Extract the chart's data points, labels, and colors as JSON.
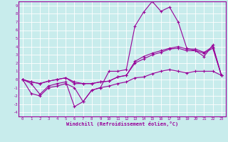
{
  "xlabel": "Windchill (Refroidissement éolien,°C)",
  "bg_color": "#c8ecec",
  "grid_color": "#ffffff",
  "line_color": "#990099",
  "xlim": [
    -0.5,
    23.5
  ],
  "ylim": [
    -4.5,
    9.5
  ],
  "xticks": [
    0,
    1,
    2,
    3,
    4,
    5,
    6,
    7,
    8,
    9,
    10,
    11,
    12,
    13,
    14,
    15,
    16,
    17,
    18,
    19,
    20,
    21,
    22,
    23
  ],
  "yticks": [
    -4,
    -3,
    -2,
    -1,
    0,
    1,
    2,
    3,
    4,
    5,
    6,
    7,
    8,
    9
  ],
  "series": [
    [
      0.0,
      -0.5,
      -1.8,
      -0.8,
      -0.5,
      -0.3,
      -3.3,
      -2.7,
      -1.3,
      -1.0,
      1.0,
      1.0,
      1.2,
      6.5,
      8.2,
      9.5,
      8.3,
      8.8,
      7.0,
      3.8,
      3.5,
      2.8,
      4.2,
      0.5
    ],
    [
      0.0,
      -1.7,
      -2.0,
      -1.0,
      -0.8,
      -0.5,
      -1.0,
      -2.7,
      -1.3,
      -1.0,
      -0.8,
      -0.5,
      -0.3,
      0.2,
      0.3,
      0.7,
      1.0,
      1.2,
      1.0,
      0.8,
      1.0,
      1.0,
      1.0,
      0.5
    ],
    [
      0.0,
      -0.3,
      -0.5,
      -0.2,
      0.0,
      0.2,
      -0.5,
      -0.5,
      -0.5,
      -0.3,
      -0.2,
      0.3,
      0.5,
      2.2,
      2.8,
      3.2,
      3.5,
      3.8,
      4.0,
      3.7,
      3.7,
      3.3,
      4.0,
      0.5
    ],
    [
      0.0,
      -0.3,
      -0.5,
      -0.2,
      0.0,
      0.2,
      -0.3,
      -0.5,
      -0.5,
      -0.3,
      -0.2,
      0.3,
      0.5,
      2.0,
      2.5,
      3.0,
      3.3,
      3.7,
      3.8,
      3.5,
      3.5,
      3.2,
      3.8,
      0.5
    ]
  ]
}
